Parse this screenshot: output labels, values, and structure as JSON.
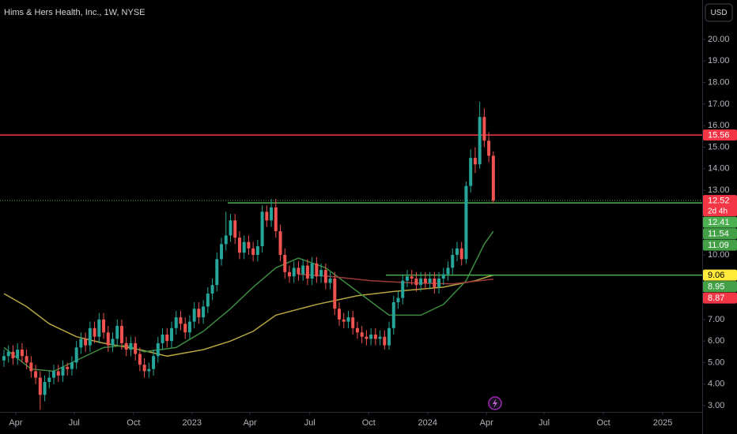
{
  "chart_data": {
    "type": "candlestick",
    "title": "Hims & Hers Health, Inc., 1W, NYSE",
    "currency": "USD",
    "up_color": "#26a69a",
    "down_color": "#ef5350",
    "xlim": [
      -0.87,
      154.1
    ],
    "ylim": [
      2.71,
      21.83
    ],
    "xticks": [
      {
        "value": 2.6,
        "label": "Apr"
      },
      {
        "value": 15.5,
        "label": "Jul"
      },
      {
        "value": 28.6,
        "label": "Oct"
      },
      {
        "value": 41.5,
        "label": "2023"
      },
      {
        "value": 54.3,
        "label": "Apr"
      },
      {
        "value": 67.5,
        "label": "Jul"
      },
      {
        "value": 80.5,
        "label": "Oct"
      },
      {
        "value": 93.5,
        "label": "2024"
      },
      {
        "value": 106.5,
        "label": "Apr"
      },
      {
        "value": 119.2,
        "label": "Jul"
      },
      {
        "value": 132.3,
        "label": "Oct"
      },
      {
        "value": 145.4,
        "label": "2025"
      }
    ],
    "yticks": [
      {
        "value": 20,
        "label": "20.00"
      },
      {
        "value": 19,
        "label": "19.00"
      },
      {
        "value": 18,
        "label": "18.00"
      },
      {
        "value": 17,
        "label": "17.00"
      },
      {
        "value": 16,
        "label": "16.00"
      },
      {
        "value": 15,
        "label": "15.00"
      },
      {
        "value": 14,
        "label": "14.00"
      },
      {
        "value": 13,
        "label": "13.00"
      },
      {
        "value": 10,
        "label": "10.00"
      },
      {
        "value": 7,
        "label": "7.00"
      },
      {
        "value": 6,
        "label": "6.00"
      },
      {
        "value": 5,
        "label": "5.00"
      },
      {
        "value": 4,
        "label": "4.00"
      },
      {
        "value": 3,
        "label": "3.00"
      }
    ],
    "open": [
      5.1,
      5.3,
      5.5,
      5.2,
      5.6,
      5.3,
      5.0,
      4.6,
      4.3,
      3.5,
      4.1,
      4.3,
      4.6,
      4.4,
      4.8,
      4.7,
      5.0,
      5.7,
      6.1,
      5.8,
      6.6,
      6.2,
      7.0,
      6.4,
      5.8,
      6.1,
      6.7,
      5.9,
      5.6,
      5.9,
      5.4,
      4.9,
      4.6,
      4.7,
      5.3,
      5.9,
      6.3,
      6.0,
      6.6,
      7.1,
      6.8,
      6.4,
      6.9,
      7.5,
      7.1,
      7.6,
      8.2,
      8.6,
      9.8,
      10.5,
      10.9,
      11.6,
      10.8,
      10.1,
      10.6,
      10.3,
      10.0,
      10.4,
      12.0,
      11.6,
      12.2,
      11.1,
      10.0,
      9.2,
      9.0,
      9.4,
      9.1,
      9.5,
      8.9,
      9.6,
      9.0,
      9.3,
      8.7,
      8.9,
      7.5,
      7.0,
      6.9,
      7.1,
      6.6,
      6.4,
      6.2,
      6.1,
      6.3,
      6.1,
      6.2,
      5.8,
      6.6,
      7.8,
      8.0,
      8.8,
      9.0,
      8.9,
      8.6,
      8.9,
      8.7,
      8.9,
      8.5,
      8.9,
      9.1,
      9.4,
      10.0,
      10.3,
      9.8,
      13.2,
      14.5,
      14.2,
      16.4,
      15.3,
      14.6
    ],
    "high": [
      5.6,
      5.8,
      5.8,
      5.9,
      5.9,
      5.6,
      5.3,
      4.9,
      4.6,
      4.4,
      4.6,
      4.9,
      4.9,
      5.1,
      5.0,
      5.3,
      6.0,
      6.4,
      6.4,
      6.9,
      6.9,
      7.3,
      7.3,
      6.7,
      6.4,
      7.0,
      7.0,
      6.2,
      6.2,
      6.2,
      5.7,
      5.2,
      5.0,
      5.6,
      6.2,
      6.6,
      6.6,
      6.9,
      7.4,
      7.4,
      7.1,
      7.2,
      7.8,
      7.8,
      7.9,
      8.5,
      8.9,
      10.1,
      10.8,
      12.0,
      11.9,
      11.9,
      11.1,
      10.9,
      10.9,
      10.6,
      10.7,
      12.3,
      12.3,
      12.6,
      12.6,
      11.4,
      10.3,
      9.5,
      9.7,
      9.7,
      9.8,
      9.8,
      9.9,
      9.9,
      9.6,
      9.6,
      9.2,
      9.2,
      7.8,
      7.3,
      7.4,
      7.4,
      6.9,
      6.7,
      6.5,
      6.6,
      6.6,
      6.5,
      6.5,
      6.9,
      8.1,
      8.3,
      9.1,
      9.3,
      9.3,
      9.2,
      9.2,
      9.2,
      9.2,
      9.2,
      9.2,
      9.4,
      9.7,
      10.3,
      10.6,
      10.6,
      13.4,
      14.9,
      15.0,
      17.1,
      16.8,
      15.7,
      14.8
    ],
    "low": [
      4.8,
      5.0,
      4.9,
      4.9,
      5.0,
      4.7,
      4.3,
      4.0,
      2.8,
      3.2,
      3.8,
      4.0,
      4.1,
      4.1,
      4.4,
      4.4,
      4.7,
      5.4,
      5.5,
      5.5,
      5.9,
      5.9,
      6.1,
      5.5,
      5.5,
      5.8,
      5.6,
      5.3,
      5.3,
      5.1,
      4.6,
      4.3,
      4.3,
      4.4,
      5.0,
      5.6,
      5.7,
      5.7,
      6.3,
      6.5,
      6.1,
      6.1,
      6.6,
      6.8,
      6.8,
      7.3,
      7.9,
      8.3,
      9.5,
      10.2,
      10.6,
      10.5,
      9.8,
      9.8,
      10.0,
      9.7,
      9.7,
      10.1,
      11.3,
      11.3,
      10.8,
      9.7,
      8.9,
      8.7,
      8.7,
      8.8,
      8.8,
      8.6,
      8.6,
      8.7,
      8.7,
      8.4,
      8.4,
      7.2,
      6.7,
      6.6,
      6.6,
      6.3,
      6.1,
      5.9,
      5.8,
      5.8,
      5.8,
      5.8,
      5.6,
      5.6,
      6.3,
      7.5,
      7.7,
      8.5,
      8.6,
      8.3,
      8.3,
      8.4,
      8.4,
      8.2,
      8.2,
      8.6,
      8.8,
      9.1,
      9.7,
      9.5,
      9.6,
      12.9,
      13.8,
      14.0,
      15.0,
      14.3,
      12.4
    ],
    "close": [
      5.3,
      5.5,
      5.2,
      5.6,
      5.3,
      5.0,
      4.6,
      4.3,
      3.5,
      4.1,
      4.3,
      4.6,
      4.4,
      4.8,
      4.7,
      5.0,
      5.7,
      6.1,
      5.8,
      6.6,
      6.2,
      7.0,
      6.4,
      5.8,
      6.1,
      6.7,
      5.9,
      5.6,
      5.9,
      5.4,
      4.9,
      4.6,
      4.7,
      5.3,
      5.9,
      6.3,
      6.0,
      6.6,
      7.1,
      6.8,
      6.4,
      6.9,
      7.5,
      7.1,
      7.6,
      8.2,
      8.6,
      9.8,
      10.5,
      10.9,
      11.6,
      10.8,
      10.1,
      10.6,
      10.3,
      10.0,
      10.4,
      12.0,
      11.6,
      12.2,
      11.1,
      10.0,
      9.2,
      9.0,
      9.4,
      9.1,
      9.5,
      8.9,
      9.6,
      9.0,
      9.3,
      8.7,
      8.9,
      7.5,
      7.0,
      6.9,
      7.1,
      6.6,
      6.4,
      6.2,
      6.1,
      6.3,
      6.1,
      6.2,
      5.8,
      6.6,
      7.8,
      8.0,
      8.8,
      9.0,
      8.9,
      8.6,
      8.9,
      8.7,
      8.9,
      8.5,
      8.9,
      9.1,
      9.4,
      10.0,
      10.3,
      9.8,
      13.2,
      14.5,
      14.2,
      16.4,
      15.3,
      14.6,
      12.52
    ],
    "overlays": [
      {
        "color": "#b5a642",
        "x": [
          0,
          5,
          10,
          16,
          22,
          30,
          36,
          44,
          50,
          55,
          60,
          69,
          78,
          86,
          97,
          104,
          108
        ],
        "values": [
          8.2,
          7.6,
          6.8,
          6.2,
          5.9,
          5.6,
          5.3,
          5.6,
          6.0,
          6.45,
          7.2,
          7.7,
          8.1,
          8.3,
          8.5,
          8.8,
          9.06
        ]
      },
      {
        "color": "#3d8b40",
        "x": [
          0,
          6,
          11,
          17,
          22,
          27,
          31,
          38,
          44,
          50,
          55,
          60,
          65,
          71,
          78,
          85,
          92,
          97,
          102,
          106,
          108
        ],
        "values": [
          5.7,
          4.7,
          4.6,
          5.2,
          5.7,
          5.8,
          5.5,
          5.7,
          6.45,
          7.5,
          8.5,
          9.4,
          9.85,
          9.4,
          8.3,
          7.2,
          7.2,
          7.7,
          8.8,
          10.5,
          11.09
        ]
      },
      {
        "color": "#9c3a3a",
        "x": [
          65,
          72,
          81,
          90,
          99,
          108
        ],
        "values": [
          9.1,
          9.0,
          8.8,
          8.7,
          8.65,
          8.87
        ]
      }
    ],
    "levels": [
      {
        "value": 15.56,
        "color": "#f23645"
      },
      {
        "value": 12.41,
        "color": "#4caf50",
        "start": 49.4
      },
      {
        "value": 9.06,
        "color": "#4caf50",
        "start": 84.3
      }
    ],
    "price_line": {
      "value": 12.52,
      "color": "#4caf50"
    },
    "price_labels": [
      {
        "value": 15.56,
        "label": "15.56",
        "color": "#f23645",
        "text_color": "#ffffff"
      },
      {
        "value": 12.52,
        "label": "12.52",
        "sub": "2d 4h",
        "color": "#f23645",
        "text_color": "#ffffff"
      },
      {
        "value": 12.41,
        "label": "12.41",
        "color": "#4caf50",
        "text_color": "#ffffff"
      },
      {
        "value": 11.54,
        "label": "11.54",
        "color": "#43a047",
        "text_color": "#ffffff"
      },
      {
        "value": 11.09,
        "label": "11.09",
        "color": "#43a047",
        "text_color": "#ffffff"
      },
      {
        "value": 9.06,
        "label": "9.06",
        "color": "#ffeb3b",
        "text_color": "#000000"
      },
      {
        "value": 8.95,
        "label": "8.95",
        "color": "#43a047",
        "text_color": "#ffffff"
      },
      {
        "value": 8.87,
        "label": "8.87",
        "color": "#f23645",
        "text_color": "#ffffff"
      }
    ]
  }
}
